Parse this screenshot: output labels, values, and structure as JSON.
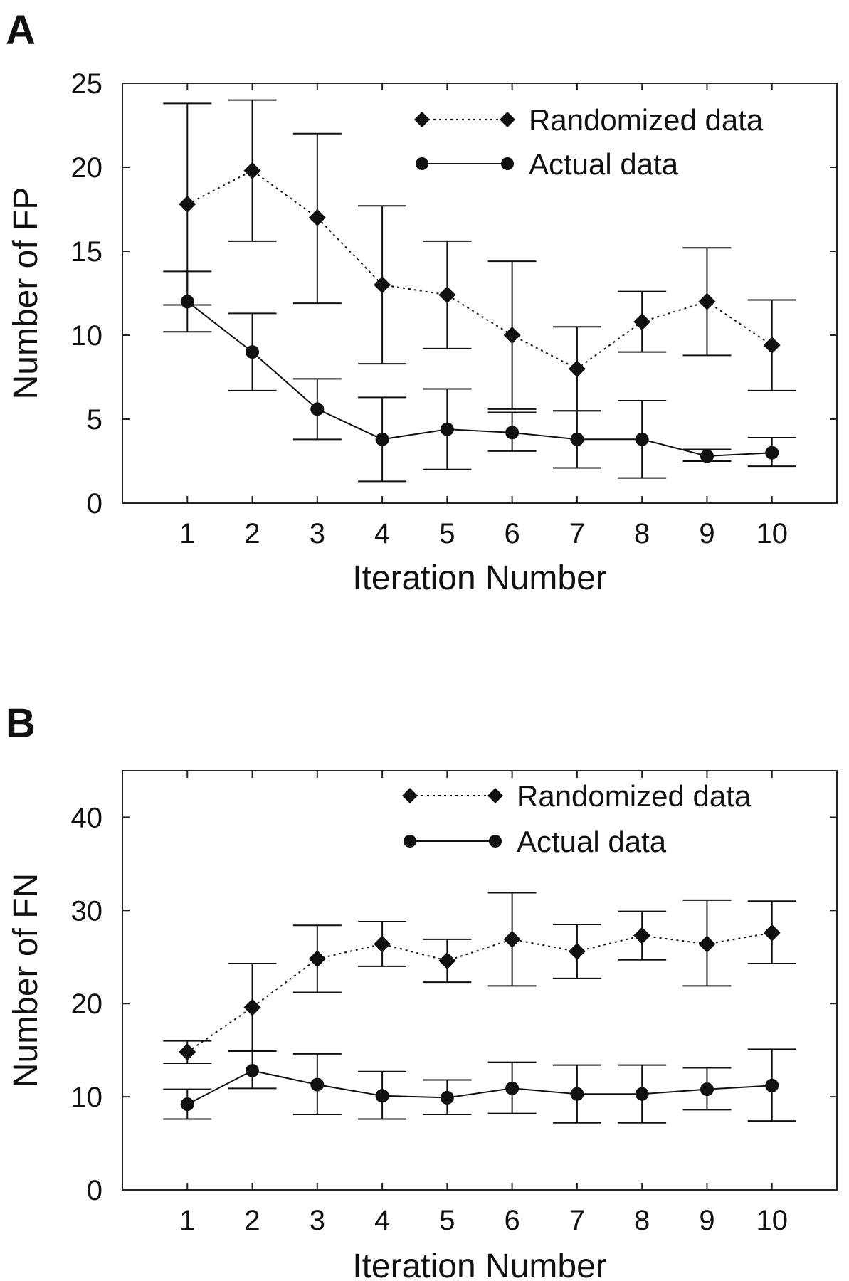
{
  "chart_data": [
    {
      "type": "line",
      "panel_label": "A",
      "xlabel": "Iteration Number",
      "ylabel": "Number of FP",
      "xlim": [
        0,
        11
      ],
      "ylim": [
        0,
        25
      ],
      "x": [
        1,
        2,
        3,
        4,
        5,
        6,
        7,
        8,
        9,
        10
      ],
      "x_tick_labels": [
        "1",
        "2",
        "3",
        "4",
        "5",
        "6",
        "7",
        "8",
        "9",
        "10"
      ],
      "y_ticks": [
        0,
        5,
        10,
        15,
        20,
        25
      ],
      "y_tick_labels": [
        "0",
        "5",
        "10",
        "15",
        "20",
        "25"
      ],
      "grid": false,
      "legend_position": "top-right",
      "series": [
        {
          "name": "Randomized data",
          "style": "dotted",
          "marker": "diamond",
          "values": [
            17.8,
            19.8,
            17.0,
            13.0,
            12.4,
            10.0,
            8.0,
            10.8,
            12.0,
            9.4
          ],
          "error_low": [
            11.8,
            15.6,
            11.9,
            8.3,
            9.2,
            5.6,
            5.5,
            9.0,
            8.8,
            6.7
          ],
          "error_high": [
            23.8,
            24.0,
            22.0,
            17.7,
            15.6,
            14.4,
            10.5,
            12.6,
            15.2,
            12.1
          ]
        },
        {
          "name": "Actual data",
          "style": "solid",
          "marker": "circle",
          "values": [
            12.0,
            9.0,
            5.6,
            3.8,
            4.4,
            4.2,
            3.8,
            3.8,
            2.8,
            3.0
          ],
          "error_low": [
            10.2,
            6.7,
            3.8,
            1.3,
            2.0,
            3.1,
            2.1,
            1.5,
            2.5,
            2.2
          ],
          "error_high": [
            13.8,
            11.3,
            7.4,
            6.3,
            6.8,
            5.4,
            5.5,
            6.1,
            3.2,
            3.9
          ]
        }
      ]
    },
    {
      "type": "line",
      "panel_label": "B",
      "xlabel": "Iteration Number",
      "ylabel": "Number of FN",
      "xlim": [
        0,
        11
      ],
      "ylim": [
        0,
        45
      ],
      "x": [
        1,
        2,
        3,
        4,
        5,
        6,
        7,
        8,
        9,
        10
      ],
      "x_tick_labels": [
        "1",
        "2",
        "3",
        "4",
        "5",
        "6",
        "7",
        "8",
        "9",
        "10"
      ],
      "y_ticks": [
        0,
        10,
        20,
        30,
        40
      ],
      "y_tick_labels": [
        "0",
        "10",
        "20",
        "30",
        "40"
      ],
      "grid": false,
      "legend_position": "top-right",
      "series": [
        {
          "name": "Randomized data",
          "style": "dotted",
          "marker": "diamond",
          "values": [
            14.8,
            19.6,
            24.8,
            26.4,
            24.6,
            26.9,
            25.6,
            27.3,
            26.4,
            27.6
          ],
          "error_low": [
            13.6,
            14.9,
            21.2,
            24.0,
            22.3,
            21.9,
            22.7,
            24.7,
            21.9,
            24.3
          ],
          "error_high": [
            16.0,
            24.3,
            28.4,
            28.8,
            26.9,
            31.9,
            28.5,
            29.9,
            31.1,
            31.0
          ]
        },
        {
          "name": "Actual data",
          "style": "solid",
          "marker": "circle",
          "values": [
            9.2,
            12.8,
            11.3,
            10.1,
            9.9,
            10.9,
            10.3,
            10.3,
            10.8,
            11.2
          ],
          "error_low": [
            7.6,
            10.9,
            8.1,
            7.6,
            8.1,
            8.2,
            7.2,
            7.2,
            8.6,
            7.4
          ],
          "error_high": [
            10.8,
            14.9,
            14.6,
            12.7,
            11.8,
            13.7,
            13.4,
            13.4,
            13.1,
            15.1
          ]
        }
      ]
    }
  ]
}
